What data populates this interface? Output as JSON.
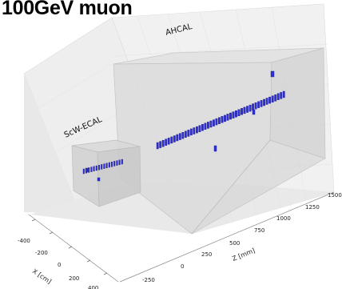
{
  "title": "100GeV muon",
  "detectors": {
    "ecal": "ScW-ECAL",
    "hcal": "AHCAL"
  },
  "axes": {
    "x": {
      "label": "X [cm]",
      "ticks": [
        "-400",
        "-200",
        "0",
        "200",
        "400"
      ]
    },
    "z": {
      "label": "Z [mm]",
      "ticks": [
        "-250",
        "0",
        "250",
        "500",
        "750",
        "1000",
        "1250",
        "1500"
      ]
    }
  },
  "colors": {
    "hits": "#3030d0",
    "hits_edge": "#1a1a90",
    "detector_box": "#b8b8b8",
    "pane": "#ececec"
  }
}
